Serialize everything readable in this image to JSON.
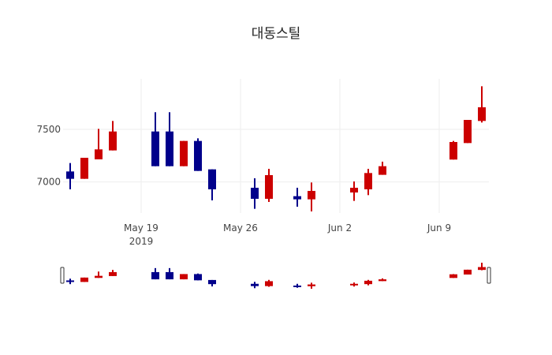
{
  "chart_data": {
    "type": "candlestick",
    "title": "대동스틸",
    "xlabel": "",
    "ylabel": "",
    "increasing_color": "#cc0000",
    "decreasing_color": "#00008b",
    "x_ticks": [
      {
        "label": "May 19",
        "sublabel": "2019",
        "date": "2019-05-19"
      },
      {
        "label": "May 26",
        "sublabel": "",
        "date": "2019-05-26"
      },
      {
        "label": "Jun 2",
        "sublabel": "",
        "date": "2019-06-02"
      },
      {
        "label": "Jun 9",
        "sublabel": "",
        "date": "2019-06-09"
      }
    ],
    "y_ticks": [
      7000,
      7500
    ],
    "ylim": [
      6705,
      7980
    ],
    "xlim": [
      "2019-05-13T12:00",
      "2019-06-12T12:00"
    ],
    "grid": true,
    "rangeslider": true,
    "series": [
      {
        "date": "2019-05-14",
        "open": 7100,
        "high": 7180,
        "low": 6930,
        "close": 7030
      },
      {
        "date": "2019-05-15",
        "open": 7030,
        "high": 7230,
        "low": 7030,
        "close": 7230
      },
      {
        "date": "2019-05-16",
        "open": 7215,
        "high": 7505,
        "low": 7215,
        "close": 7310
      },
      {
        "date": "2019-05-17",
        "open": 7300,
        "high": 7580,
        "low": 7300,
        "close": 7480
      },
      {
        "date": "2019-05-20",
        "open": 7480,
        "high": 7663,
        "low": 7150,
        "close": 7150
      },
      {
        "date": "2019-05-21",
        "open": 7480,
        "high": 7663,
        "low": 7150,
        "close": 7150
      },
      {
        "date": "2019-05-22",
        "open": 7150,
        "high": 7390,
        "low": 7150,
        "close": 7390
      },
      {
        "date": "2019-05-23",
        "open": 7390,
        "high": 7415,
        "low": 7105,
        "close": 7105
      },
      {
        "date": "2019-05-24",
        "open": 7120,
        "high": 7120,
        "low": 6825,
        "close": 6930
      },
      {
        "date": "2019-05-27",
        "open": 6945,
        "high": 7035,
        "low": 6745,
        "close": 6840
      },
      {
        "date": "2019-05-28",
        "open": 6840,
        "high": 7125,
        "low": 6810,
        "close": 7065
      },
      {
        "date": "2019-05-30",
        "open": 6865,
        "high": 6945,
        "low": 6765,
        "close": 6835
      },
      {
        "date": "2019-05-31",
        "open": 6835,
        "high": 6995,
        "low": 6720,
        "close": 6915
      },
      {
        "date": "2019-06-03",
        "open": 6900,
        "high": 7005,
        "low": 6820,
        "close": 6945
      },
      {
        "date": "2019-06-04",
        "open": 6930,
        "high": 7125,
        "low": 6875,
        "close": 7085
      },
      {
        "date": "2019-06-05",
        "open": 7068,
        "high": 7193,
        "low": 7068,
        "close": 7150
      },
      {
        "date": "2019-06-10",
        "open": 7213,
        "high": 7390,
        "low": 7213,
        "close": 7380
      },
      {
        "date": "2019-06-11",
        "open": 7370,
        "high": 7590,
        "low": 7370,
        "close": 7590
      },
      {
        "date": "2019-06-12",
        "open": 7580,
        "high": 7910,
        "low": 7565,
        "close": 7710
      }
    ]
  }
}
